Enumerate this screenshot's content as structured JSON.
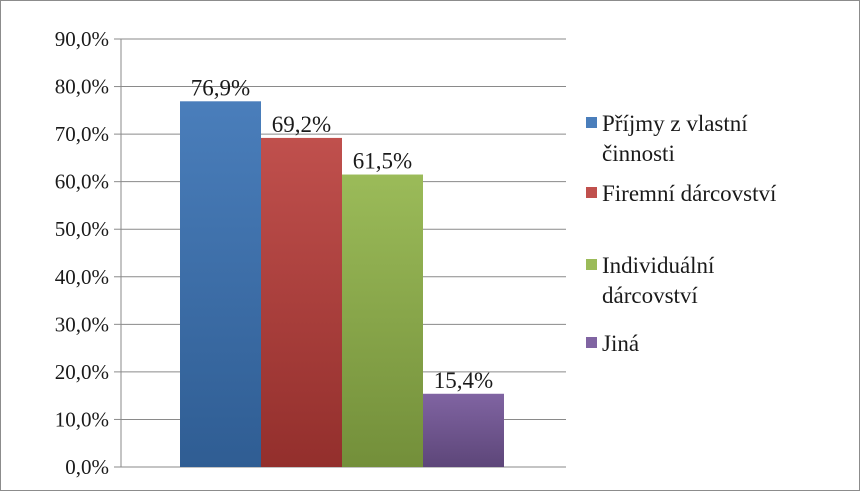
{
  "chart_data": {
    "type": "bar",
    "title": "",
    "xlabel": "",
    "ylabel": "",
    "ylim": [
      0,
      90
    ],
    "y_ticks": [
      "0,0%",
      "10,0%",
      "20,0%",
      "30,0%",
      "40,0%",
      "50,0%",
      "60,0%",
      "70,0%",
      "80,0%",
      "90,0%"
    ],
    "grid": true,
    "legend_position": "right",
    "series": [
      {
        "name": "Příjmy z vlastní činnosti",
        "legend_lines": [
          "Příjmy z vlastní",
          "činnosti"
        ],
        "value": 76.9,
        "label": "76,9%",
        "color": "#4a7ebb",
        "color_dark": "#2f5d93"
      },
      {
        "name": "Firemní dárcovství",
        "legend_lines": [
          "Firemní dárcovství"
        ],
        "value": 69.2,
        "label": "69,2%",
        "color": "#c0504d",
        "color_dark": "#932f2c"
      },
      {
        "name": "Individuální dárcovství",
        "legend_lines": [
          "Individuální",
          "dárcovství"
        ],
        "value": 61.5,
        "label": "61,5%",
        "color": "#9bbb59",
        "color_dark": "#738f3a"
      },
      {
        "name": "Jiná",
        "legend_lines": [
          "Jiná"
        ],
        "value": 15.4,
        "label": "15,4%",
        "color": "#8064a2",
        "color_dark": "#5d4679"
      }
    ]
  }
}
